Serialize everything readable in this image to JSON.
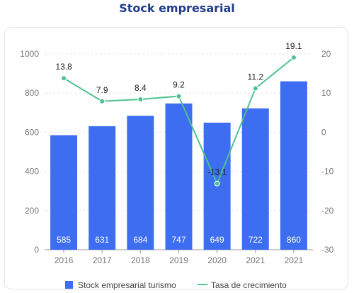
{
  "chart_data": {
    "type": "bar",
    "title": "Stock empresarial",
    "categories": [
      "2016",
      "2017",
      "2018",
      "2019",
      "2020",
      "2021",
      "2021"
    ],
    "series": [
      {
        "name": "Stock empresarial turismo",
        "type": "bar",
        "axis": "left",
        "values": [
          585,
          631,
          684,
          747,
          649,
          722,
          860
        ]
      },
      {
        "name": "Tasa de crecimiento",
        "type": "line",
        "axis": "right",
        "values": [
          13.8,
          7.9,
          8.4,
          9.2,
          -13.1,
          11.2,
          19.1
        ]
      }
    ],
    "ylim_left": [
      0,
      1000
    ],
    "ylim_right": [
      -30,
      20
    ],
    "left_ticks": [
      0,
      200,
      400,
      600,
      800,
      1000
    ],
    "right_ticks": [
      -30,
      -20,
      -10,
      0,
      10,
      20
    ],
    "grid": true,
    "legend_position": "bottom",
    "colors": {
      "bar": "#3d6df0",
      "line": "#4cc391",
      "title": "#1f3c88"
    }
  }
}
